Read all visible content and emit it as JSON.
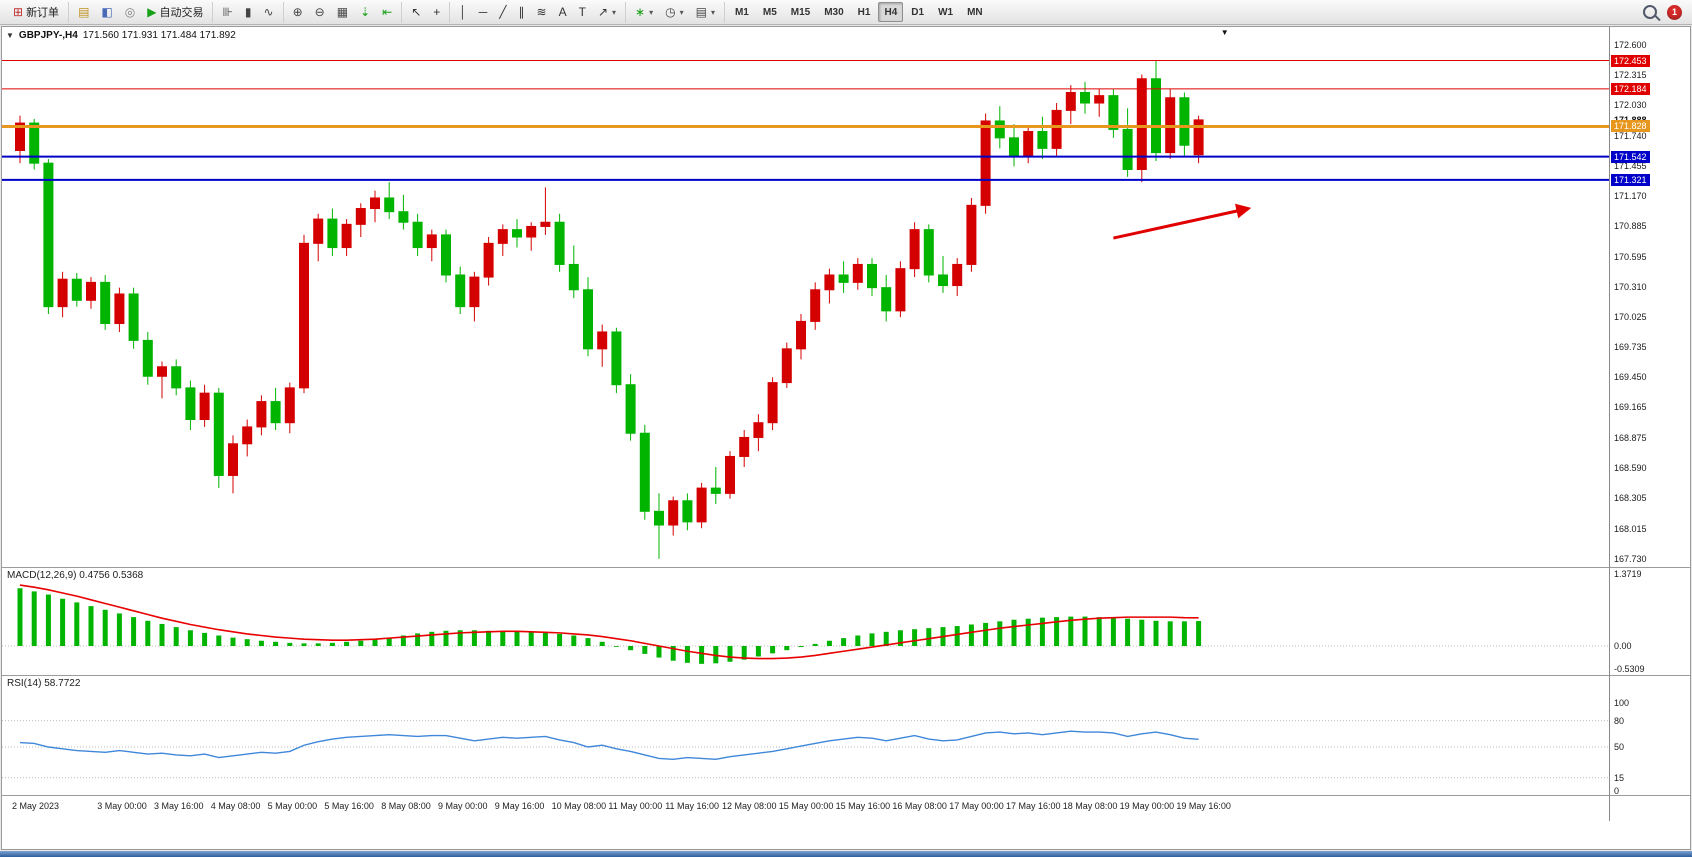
{
  "toolbar": {
    "groups": [
      {
        "items": [
          {
            "name": "new-order-button",
            "glyph": "⊞",
            "glyph_color": "#c03030",
            "label": "新订单",
            "interactable": true
          }
        ]
      },
      {
        "items": [
          {
            "name": "market-watch-icon",
            "glyph": "▤",
            "glyph_color": "#c09020",
            "interactable": true
          },
          {
            "name": "data-window-icon",
            "glyph": "◧",
            "glyph_color": "#4868b8",
            "interactable": true
          },
          {
            "name": "navigator-icon",
            "glyph": "◎",
            "glyph_color": "#808080",
            "interactable": true
          },
          {
            "name": "autotrade-button",
            "glyph": "▶",
            "glyph_color": "#18a018",
            "label": "自动交易",
            "interactable": true
          }
        ]
      },
      {
        "items": [
          {
            "name": "bars-chart-icon",
            "glyph": "⊪",
            "glyph_color": "#444444",
            "interactable": true
          },
          {
            "name": "candles-chart-icon",
            "glyph": "▮",
            "glyph_color": "#444444",
            "interactable": true
          },
          {
            "name": "line-chart-icon",
            "glyph": "∿",
            "glyph_color": "#444444",
            "interactable": true
          }
        ]
      },
      {
        "items": [
          {
            "name": "zoom-in-icon",
            "glyph": "⊕",
            "glyph_color": "#444444",
            "interactable": true
          },
          {
            "name": "zoom-out-icon",
            "glyph": "⊖",
            "glyph_color": "#444444",
            "interactable": true
          },
          {
            "name": "tile-windows-icon",
            "glyph": "▦",
            "glyph_color": "#444444",
            "interactable": true
          },
          {
            "name": "auto-scroll-icon",
            "glyph": "⇣",
            "glyph_color": "#18a018",
            "interactable": true
          },
          {
            "name": "chart-shift-icon",
            "glyph": "⇤",
            "glyph_color": "#18a018",
            "interactable": true
          }
        ]
      },
      {
        "items": [
          {
            "name": "cursor-icon",
            "glyph": "↖",
            "glyph_color": "#333333",
            "interactable": true
          },
          {
            "name": "crosshair-icon",
            "glyph": "+",
            "glyph_color": "#333333",
            "interactable": true
          }
        ]
      },
      {
        "items": [
          {
            "name": "vertical-line-icon",
            "glyph": "│",
            "glyph_color": "#333333",
            "interactable": true
          },
          {
            "name": "horizontal-line-icon",
            "glyph": "─",
            "glyph_color": "#333333",
            "interactable": true
          },
          {
            "name": "trendline-icon",
            "glyph": "╱",
            "glyph_color": "#333333",
            "interactable": true
          },
          {
            "name": "channel-icon",
            "glyph": "∥",
            "glyph_color": "#333333",
            "interactable": true
          },
          {
            "name": "fibonacci-icon",
            "glyph": "≋",
            "glyph_color": "#333333",
            "interactable": true
          },
          {
            "name": "text-icon",
            "glyph": "A",
            "glyph_color": "#333333",
            "interactable": true
          },
          {
            "name": "label-icon",
            "glyph": "T",
            "glyph_color": "#333333",
            "interactable": true
          },
          {
            "name": "arrows-icon",
            "glyph": "↗",
            "glyph_color": "#333333",
            "dropdown": true,
            "interactable": true
          }
        ]
      },
      {
        "items": [
          {
            "name": "indicators-icon",
            "glyph": "∗",
            "glyph_color": "#18a018",
            "dropdown": true,
            "interactable": true
          },
          {
            "name": "periods-icon",
            "glyph": "◷",
            "glyph_color": "#444444",
            "dropdown": true,
            "interactable": true
          },
          {
            "name": "template-icon",
            "glyph": "▤",
            "glyph_color": "#444444",
            "dropdown": true,
            "interactable": true
          }
        ]
      }
    ],
    "timeframes": [
      "M1",
      "M5",
      "M15",
      "M30",
      "H1",
      "H4",
      "D1",
      "W1",
      "MN"
    ],
    "active_timeframe": "H4",
    "notification_count": "1"
  },
  "icons": {
    "collapse_glyph": "▼",
    "last_bar_marker_glyph": "▼",
    "dropdown_glyph": "▾"
  },
  "chart": {
    "symbol_period": "GBPJPY-,H4",
    "ohlc_text": "171.560 171.931 171.484 171.892",
    "current_price": "171.888",
    "price_ticks": [
      "172.600",
      "172.315",
      "172.030",
      "171.740",
      "171.455",
      "171.170",
      "170.885",
      "170.595",
      "170.310",
      "170.025",
      "169.735",
      "169.450",
      "169.165",
      "168.875",
      "168.590",
      "168.305",
      "168.015",
      "167.730"
    ],
    "hlines": [
      {
        "name": "resistance-line-1",
        "price": 172.453,
        "label": "172.453",
        "color": "#e00000",
        "width": 1
      },
      {
        "name": "resistance-line-2",
        "price": 172.184,
        "label": "172.184",
        "color": "#e00000",
        "width": 1
      },
      {
        "name": "pivot-line",
        "price": 171.828,
        "label": "171.828",
        "color": "#e8971e",
        "width": 3
      },
      {
        "name": "support-line-1",
        "price": 171.542,
        "label": "171.542",
        "color": "#0000c8",
        "width": 2
      },
      {
        "name": "support-line-2",
        "price": 171.321,
        "label": "171.321",
        "color": "#0000c8",
        "width": 2
      }
    ],
    "arrow": {
      "from": {
        "index": 77,
        "price": 170.77
      },
      "to": {
        "index": 86.5,
        "price": 171.05
      },
      "color": "#e00000",
      "width": 3
    },
    "colors": {
      "up_candle": "#d40000",
      "down_candle": "#00b400",
      "macd_histogram": "#00b400",
      "macd_signal": "#e80000",
      "rsi_line": "#3f87d9",
      "level_dotted": "#bcbcbc"
    }
  },
  "macd": {
    "label": "MACD(12,26,9) 0.4756 0.5368",
    "ticks": [
      1.3719,
      0.0,
      -0.5309
    ],
    "tick_texts": [
      "1.3719",
      "0.00",
      "-0.5309"
    ]
  },
  "rsi": {
    "label": "RSI(14) 58.7722",
    "ticks": [
      100,
      80,
      50,
      15,
      0
    ],
    "tick_texts": [
      "100",
      "80",
      "50",
      "15",
      "0"
    ],
    "levels": [
      80,
      50,
      15
    ]
  },
  "chart_data": {
    "type": "candlestick",
    "title": "GBPJPY- H4",
    "color_convention": "red=up, green=down (CN)",
    "price_range": [
      167.73,
      172.6
    ],
    "candles": [
      [
        171.6,
        171.93,
        171.48,
        171.86
      ],
      [
        171.86,
        171.9,
        171.42,
        171.48
      ],
      [
        171.48,
        171.52,
        170.05,
        170.12
      ],
      [
        170.12,
        170.45,
        170.02,
        170.38
      ],
      [
        170.38,
        170.44,
        170.12,
        170.18
      ],
      [
        170.18,
        170.4,
        170.1,
        170.35
      ],
      [
        170.35,
        170.42,
        169.9,
        169.96
      ],
      [
        169.96,
        170.3,
        169.88,
        170.24
      ],
      [
        170.24,
        170.3,
        169.72,
        169.8
      ],
      [
        169.8,
        169.88,
        169.38,
        169.46
      ],
      [
        169.46,
        169.6,
        169.25,
        169.55
      ],
      [
        169.55,
        169.62,
        169.28,
        169.35
      ],
      [
        169.35,
        169.42,
        168.95,
        169.05
      ],
      [
        169.05,
        169.38,
        168.98,
        169.3
      ],
      [
        169.3,
        169.35,
        168.4,
        168.52
      ],
      [
        168.52,
        168.9,
        168.35,
        168.82
      ],
      [
        168.82,
        169.05,
        168.7,
        168.98
      ],
      [
        168.98,
        169.28,
        168.9,
        169.22
      ],
      [
        169.22,
        169.35,
        168.95,
        169.02
      ],
      [
        169.02,
        169.4,
        168.92,
        169.35
      ],
      [
        169.35,
        170.8,
        169.3,
        170.72
      ],
      [
        170.72,
        171.0,
        170.55,
        170.95
      ],
      [
        170.95,
        171.05,
        170.6,
        170.68
      ],
      [
        170.68,
        170.95,
        170.6,
        170.9
      ],
      [
        170.9,
        171.1,
        170.78,
        171.05
      ],
      [
        171.05,
        171.22,
        170.92,
        171.15
      ],
      [
        171.15,
        171.3,
        170.95,
        171.02
      ],
      [
        171.02,
        171.18,
        170.85,
        170.92
      ],
      [
        170.92,
        171.0,
        170.6,
        170.68
      ],
      [
        170.68,
        170.85,
        170.55,
        170.8
      ],
      [
        170.8,
        170.85,
        170.35,
        170.42
      ],
      [
        170.42,
        170.5,
        170.05,
        170.12
      ],
      [
        170.12,
        170.45,
        169.98,
        170.4
      ],
      [
        170.4,
        170.78,
        170.32,
        170.72
      ],
      [
        170.72,
        170.9,
        170.6,
        170.85
      ],
      [
        170.85,
        170.95,
        170.68,
        170.78
      ],
      [
        170.78,
        170.92,
        170.65,
        170.88
      ],
      [
        170.88,
        171.25,
        170.8,
        170.92
      ],
      [
        170.92,
        171.0,
        170.45,
        170.52
      ],
      [
        170.52,
        170.7,
        170.2,
        170.28
      ],
      [
        170.28,
        170.4,
        169.65,
        169.72
      ],
      [
        169.72,
        169.95,
        169.55,
        169.88
      ],
      [
        169.88,
        169.92,
        169.3,
        169.38
      ],
      [
        169.38,
        169.48,
        168.85,
        168.92
      ],
      [
        168.92,
        169.0,
        168.1,
        168.18
      ],
      [
        168.18,
        168.35,
        167.73,
        168.05
      ],
      [
        168.05,
        168.32,
        167.95,
        168.28
      ],
      [
        168.28,
        168.35,
        168.0,
        168.08
      ],
      [
        168.08,
        168.45,
        168.02,
        168.4
      ],
      [
        168.4,
        168.6,
        168.25,
        168.35
      ],
      [
        168.35,
        168.75,
        168.3,
        168.7
      ],
      [
        168.7,
        168.95,
        168.6,
        168.88
      ],
      [
        168.88,
        169.1,
        168.75,
        169.02
      ],
      [
        169.02,
        169.45,
        168.95,
        169.4
      ],
      [
        169.4,
        169.78,
        169.35,
        169.72
      ],
      [
        169.72,
        170.05,
        169.62,
        169.98
      ],
      [
        169.98,
        170.35,
        169.9,
        170.28
      ],
      [
        170.28,
        170.48,
        170.15,
        170.42
      ],
      [
        170.42,
        170.55,
        170.25,
        170.35
      ],
      [
        170.35,
        170.58,
        170.28,
        170.52
      ],
      [
        170.52,
        170.58,
        170.22,
        170.3
      ],
      [
        170.3,
        170.42,
        169.98,
        170.08
      ],
      [
        170.08,
        170.55,
        170.02,
        170.48
      ],
      [
        170.48,
        170.92,
        170.4,
        170.85
      ],
      [
        170.85,
        170.9,
        170.35,
        170.42
      ],
      [
        170.42,
        170.6,
        170.25,
        170.32
      ],
      [
        170.32,
        170.58,
        170.22,
        170.52
      ],
      [
        170.52,
        171.15,
        170.45,
        171.08
      ],
      [
        171.08,
        171.95,
        171.0,
        171.88
      ],
      [
        171.88,
        172.02,
        171.62,
        171.72
      ],
      [
        171.72,
        171.85,
        171.45,
        171.55
      ],
      [
        171.55,
        171.82,
        171.48,
        171.78
      ],
      [
        171.78,
        171.92,
        171.52,
        171.62
      ],
      [
        171.62,
        172.05,
        171.55,
        171.98
      ],
      [
        171.98,
        172.22,
        171.85,
        172.15
      ],
      [
        172.15,
        172.25,
        171.95,
        172.05
      ],
      [
        172.05,
        172.18,
        171.92,
        172.12
      ],
      [
        172.12,
        172.18,
        171.72,
        171.8
      ],
      [
        171.8,
        172.0,
        171.35,
        171.42
      ],
      [
        171.42,
        172.32,
        171.3,
        172.28
      ],
      [
        172.28,
        172.45,
        171.5,
        171.58
      ],
      [
        171.58,
        172.18,
        171.52,
        172.1
      ],
      [
        172.1,
        172.15,
        171.55,
        171.65
      ],
      [
        171.56,
        171.93,
        171.48,
        171.89
      ]
    ],
    "time_labels": [
      {
        "i": 0,
        "t": "2 May 2023"
      },
      {
        "i": 6,
        "t": "3 May 00:00"
      },
      {
        "i": 10,
        "t": "3 May 16:00"
      },
      {
        "i": 14,
        "t": "4 May 08:00"
      },
      {
        "i": 18,
        "t": "5 May 00:00"
      },
      {
        "i": 22,
        "t": "5 May 16:00"
      },
      {
        "i": 26,
        "t": "8 May 08:00"
      },
      {
        "i": 30,
        "t": "9 May 00:00"
      },
      {
        "i": 34,
        "t": "9 May 16:00"
      },
      {
        "i": 38,
        "t": "10 May 08:00"
      },
      {
        "i": 42,
        "t": "11 May 00:00"
      },
      {
        "i": 46,
        "t": "11 May 16:00"
      },
      {
        "i": 50,
        "t": "12 May 08:00"
      },
      {
        "i": 54,
        "t": "15 May 00:00"
      },
      {
        "i": 58,
        "t": "15 May 16:00"
      },
      {
        "i": 62,
        "t": "16 May 08:00"
      },
      {
        "i": 66,
        "t": "17 May 00:00"
      },
      {
        "i": 70,
        "t": "17 May 16:00"
      },
      {
        "i": 74,
        "t": "18 May 08:00"
      },
      {
        "i": 78,
        "t": "19 May 00:00"
      },
      {
        "i": 82,
        "t": "19 May 16:00"
      }
    ],
    "subcharts": [
      {
        "type": "bar",
        "name": "MACD(12,26,9) histogram",
        "range": [
          -0.5309,
          1.3719
        ],
        "values": [
          1.1,
          1.04,
          0.98,
          0.9,
          0.83,
          0.76,
          0.69,
          0.62,
          0.55,
          0.48,
          0.42,
          0.36,
          0.3,
          0.25,
          0.2,
          0.16,
          0.13,
          0.1,
          0.08,
          0.06,
          0.05,
          0.05,
          0.06,
          0.08,
          0.1,
          0.13,
          0.16,
          0.2,
          0.24,
          0.27,
          0.29,
          0.3,
          0.3,
          0.29,
          0.28,
          0.27,
          0.26,
          0.25,
          0.23,
          0.2,
          0.15,
          0.08,
          0.0,
          -0.08,
          -0.15,
          -0.22,
          -0.28,
          -0.32,
          -0.34,
          -0.33,
          -0.3,
          -0.26,
          -0.2,
          -0.14,
          -0.08,
          -0.02,
          0.04,
          0.1,
          0.15,
          0.2,
          0.24,
          0.27,
          0.3,
          0.32,
          0.34,
          0.36,
          0.38,
          0.41,
          0.44,
          0.47,
          0.5,
          0.52,
          0.54,
          0.55,
          0.56,
          0.56,
          0.55,
          0.54,
          0.52,
          0.5,
          0.48,
          0.47,
          0.47,
          0.4756
        ]
      },
      {
        "type": "line",
        "name": "MACD signal",
        "values": [
          1.16,
          1.12,
          1.07,
          1.01,
          0.95,
          0.88,
          0.81,
          0.74,
          0.67,
          0.6,
          0.53,
          0.47,
          0.41,
          0.36,
          0.31,
          0.27,
          0.23,
          0.2,
          0.17,
          0.15,
          0.13,
          0.12,
          0.11,
          0.11,
          0.12,
          0.13,
          0.15,
          0.17,
          0.19,
          0.21,
          0.23,
          0.25,
          0.26,
          0.27,
          0.28,
          0.28,
          0.27,
          0.26,
          0.25,
          0.23,
          0.21,
          0.18,
          0.14,
          0.1,
          0.05,
          0.0,
          -0.05,
          -0.1,
          -0.14,
          -0.18,
          -0.21,
          -0.23,
          -0.24,
          -0.24,
          -0.23,
          -0.21,
          -0.18,
          -0.14,
          -0.1,
          -0.06,
          -0.02,
          0.02,
          0.06,
          0.1,
          0.14,
          0.18,
          0.22,
          0.26,
          0.3,
          0.34,
          0.37,
          0.4,
          0.43,
          0.46,
          0.49,
          0.51,
          0.53,
          0.54,
          0.55,
          0.55,
          0.55,
          0.55,
          0.54,
          0.5368
        ]
      },
      {
        "type": "line",
        "name": "RSI(14)",
        "range": [
          0,
          100
        ],
        "levels": [
          80,
          50,
          15
        ],
        "values": [
          55,
          54,
          50,
          48,
          46,
          45,
          44,
          46,
          44,
          42,
          43,
          41,
          40,
          42,
          38,
          40,
          42,
          44,
          43,
          45,
          52,
          56,
          59,
          61,
          62,
          63,
          64,
          63,
          62,
          63,
          63,
          60,
          57,
          59,
          61,
          60,
          61,
          62,
          58,
          55,
          50,
          52,
          48,
          45,
          41,
          37,
          36,
          38,
          37,
          36,
          39,
          41,
          43,
          45,
          48,
          51,
          54,
          57,
          59,
          61,
          60,
          57,
          60,
          63,
          59,
          57,
          58,
          62,
          66,
          67,
          65,
          66,
          64,
          66,
          68,
          67,
          67,
          66,
          62,
          65,
          67,
          64,
          60,
          58.77
        ]
      }
    ]
  }
}
